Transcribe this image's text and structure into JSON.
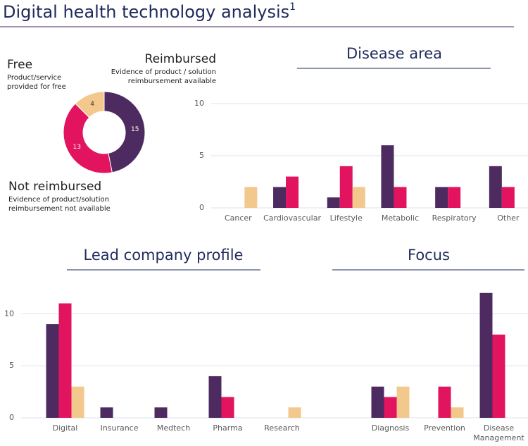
{
  "title": "Digital health technology analysis",
  "title_footnote": "1",
  "chart_data": [
    {
      "type": "donut",
      "categories": [
        "Reimbursed",
        "Not reimbursed",
        "Free"
      ],
      "descriptions": [
        [
          "Evidence of product / solution",
          "reimbursement available"
        ],
        [
          "Evidence of product/solution",
          "reimbursement not available"
        ],
        [
          "Product/service",
          "provided for free"
        ]
      ],
      "values": [
        15,
        13,
        4
      ],
      "colors": [
        "#4d2b60",
        "#e2135f",
        "#f2c88c"
      ]
    },
    {
      "type": "bar",
      "title": "Disease area",
      "categories": [
        "Cancer",
        "Cardiovascular",
        "Lifestyle",
        "Metabolic",
        "Respiratory",
        "Other"
      ],
      "series": [
        {
          "color": "#4d2b60",
          "values": [
            0,
            2,
            1,
            6,
            2,
            4
          ]
        },
        {
          "color": "#e2135f",
          "values": [
            0,
            3,
            4,
            2,
            2,
            2
          ]
        },
        {
          "color": "#f2c88c",
          "values": [
            2,
            0,
            2,
            0,
            0,
            0
          ]
        }
      ],
      "ylim": [
        0,
        10
      ],
      "yticks": [
        0,
        5,
        10
      ],
      "grid": true
    },
    {
      "type": "bar",
      "title": "Lead company profile",
      "categories": [
        "Digital",
        "Insurance",
        "Medtech",
        "Pharma",
        "Research"
      ],
      "series": [
        {
          "color": "#4d2b60",
          "values": [
            9,
            1,
            1,
            4,
            0
          ]
        },
        {
          "color": "#e2135f",
          "values": [
            11,
            0,
            0,
            2,
            0
          ]
        },
        {
          "color": "#f2c88c",
          "values": [
            3,
            0,
            0,
            0,
            1
          ]
        }
      ],
      "ylim": [
        0,
        13
      ],
      "yticks": [
        0,
        5,
        10
      ],
      "grid": true
    },
    {
      "type": "bar",
      "title": "Focus",
      "categories": [
        "Diagnosis",
        "Prevention",
        "Disease Management"
      ],
      "series": [
        {
          "color": "#4d2b60",
          "values": [
            3,
            0,
            12
          ]
        },
        {
          "color": "#e2135f",
          "values": [
            2,
            3,
            8
          ]
        },
        {
          "color": "#f2c88c",
          "values": [
            3,
            1,
            0
          ]
        }
      ],
      "ylim": [
        0,
        13
      ],
      "yticks": [
        0,
        5,
        10
      ],
      "grid": true,
      "tick_labels": false
    }
  ]
}
